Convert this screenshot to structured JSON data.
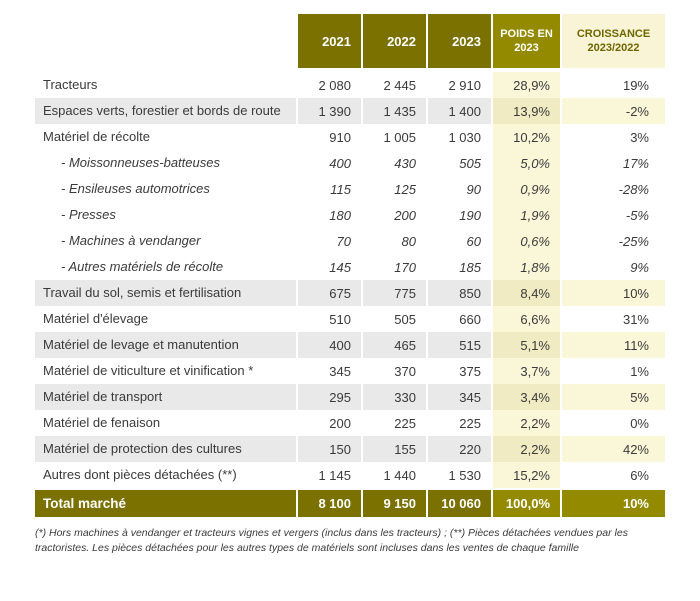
{
  "chart_data": {
    "type": "table",
    "columns": [
      "",
      "2021",
      "2022",
      "2023",
      "POIDS EN 2023",
      "CROISSANCE 2023/2022"
    ],
    "rows": [
      {
        "label": "Tracteurs",
        "style": "normal",
        "values": [
          "2 080",
          "2 445",
          "2 910",
          "28,9%",
          "19%"
        ]
      },
      {
        "label": "Espaces verts, forestier et bords de route",
        "style": "shaded",
        "values": [
          "1 390",
          "1 435",
          "1 400",
          "13,9%",
          "-2%"
        ]
      },
      {
        "label": "Matériel de récolte",
        "style": "normal",
        "values": [
          "910",
          "1 005",
          "1 030",
          "10,2%",
          "3%"
        ]
      },
      {
        "label": "- Moissonneuses-batteuses",
        "style": "sub",
        "values": [
          "400",
          "430",
          "505",
          "5,0%",
          "17%"
        ]
      },
      {
        "label": "- Ensileuses automotrices",
        "style": "sub",
        "values": [
          "115",
          "125",
          "90",
          "0,9%",
          "-28%"
        ]
      },
      {
        "label": "- Presses",
        "style": "sub",
        "values": [
          "180",
          "200",
          "190",
          "1,9%",
          "-5%"
        ]
      },
      {
        "label": "- Machines à vendanger",
        "style": "sub",
        "values": [
          "70",
          "80",
          "60",
          "0,6%",
          "-25%"
        ]
      },
      {
        "label": "- Autres matériels de récolte",
        "style": "sub",
        "values": [
          "145",
          "170",
          "185",
          "1,8%",
          "9%"
        ]
      },
      {
        "label": "Travail du sol, semis et fertilisation",
        "style": "shaded",
        "values": [
          "675",
          "775",
          "850",
          "8,4%",
          "10%"
        ]
      },
      {
        "label": "Matériel d'élevage",
        "style": "normal",
        "values": [
          "510",
          "505",
          "660",
          "6,6%",
          "31%"
        ]
      },
      {
        "label": "Matériel de levage et manutention",
        "style": "shaded",
        "values": [
          "400",
          "465",
          "515",
          "5,1%",
          "11%"
        ]
      },
      {
        "label": "Matériel de viticulture et vinification *",
        "style": "normal",
        "values": [
          "345",
          "370",
          "375",
          "3,7%",
          "1%"
        ]
      },
      {
        "label": "Matériel de transport",
        "style": "shaded",
        "values": [
          "295",
          "330",
          "345",
          "3,4%",
          "5%"
        ]
      },
      {
        "label": "Matériel de fenaison",
        "style": "normal",
        "values": [
          "200",
          "225",
          "225",
          "2,2%",
          "0%"
        ]
      },
      {
        "label": "Matériel de protection des cultures",
        "style": "shaded",
        "values": [
          "150",
          "155",
          "220",
          "2,2%",
          "42%"
        ]
      },
      {
        "label": "Autres dont pièces détachées (**)",
        "style": "normal",
        "values": [
          "1 145",
          "1 440",
          "1 530",
          "15,2%",
          "6%"
        ]
      }
    ],
    "total": {
      "label": "Total marché",
      "values": [
        "8 100",
        "9 150",
        "10 060",
        "100,0%",
        "10%"
      ]
    },
    "footnote": "(*) Hors machines à vendanger et tracteurs vignes et vergers (inclus dans les tracteurs) ; (**) Pièces détachées vendues par les tractoristes. Les pièces détachées pour les autres types de matériels sont incluses dans les ventes de chaque famille",
    "colors": {
      "header_olive": "#7a7100",
      "header_gold": "#938a00",
      "pale_yellow": "#faf6d8",
      "pale_yellow_dark": "#f0ebc2",
      "row_stripe": "#e9e9e9",
      "text": "#3a3a3a",
      "croissance_header_text": "#6e6600"
    }
  }
}
